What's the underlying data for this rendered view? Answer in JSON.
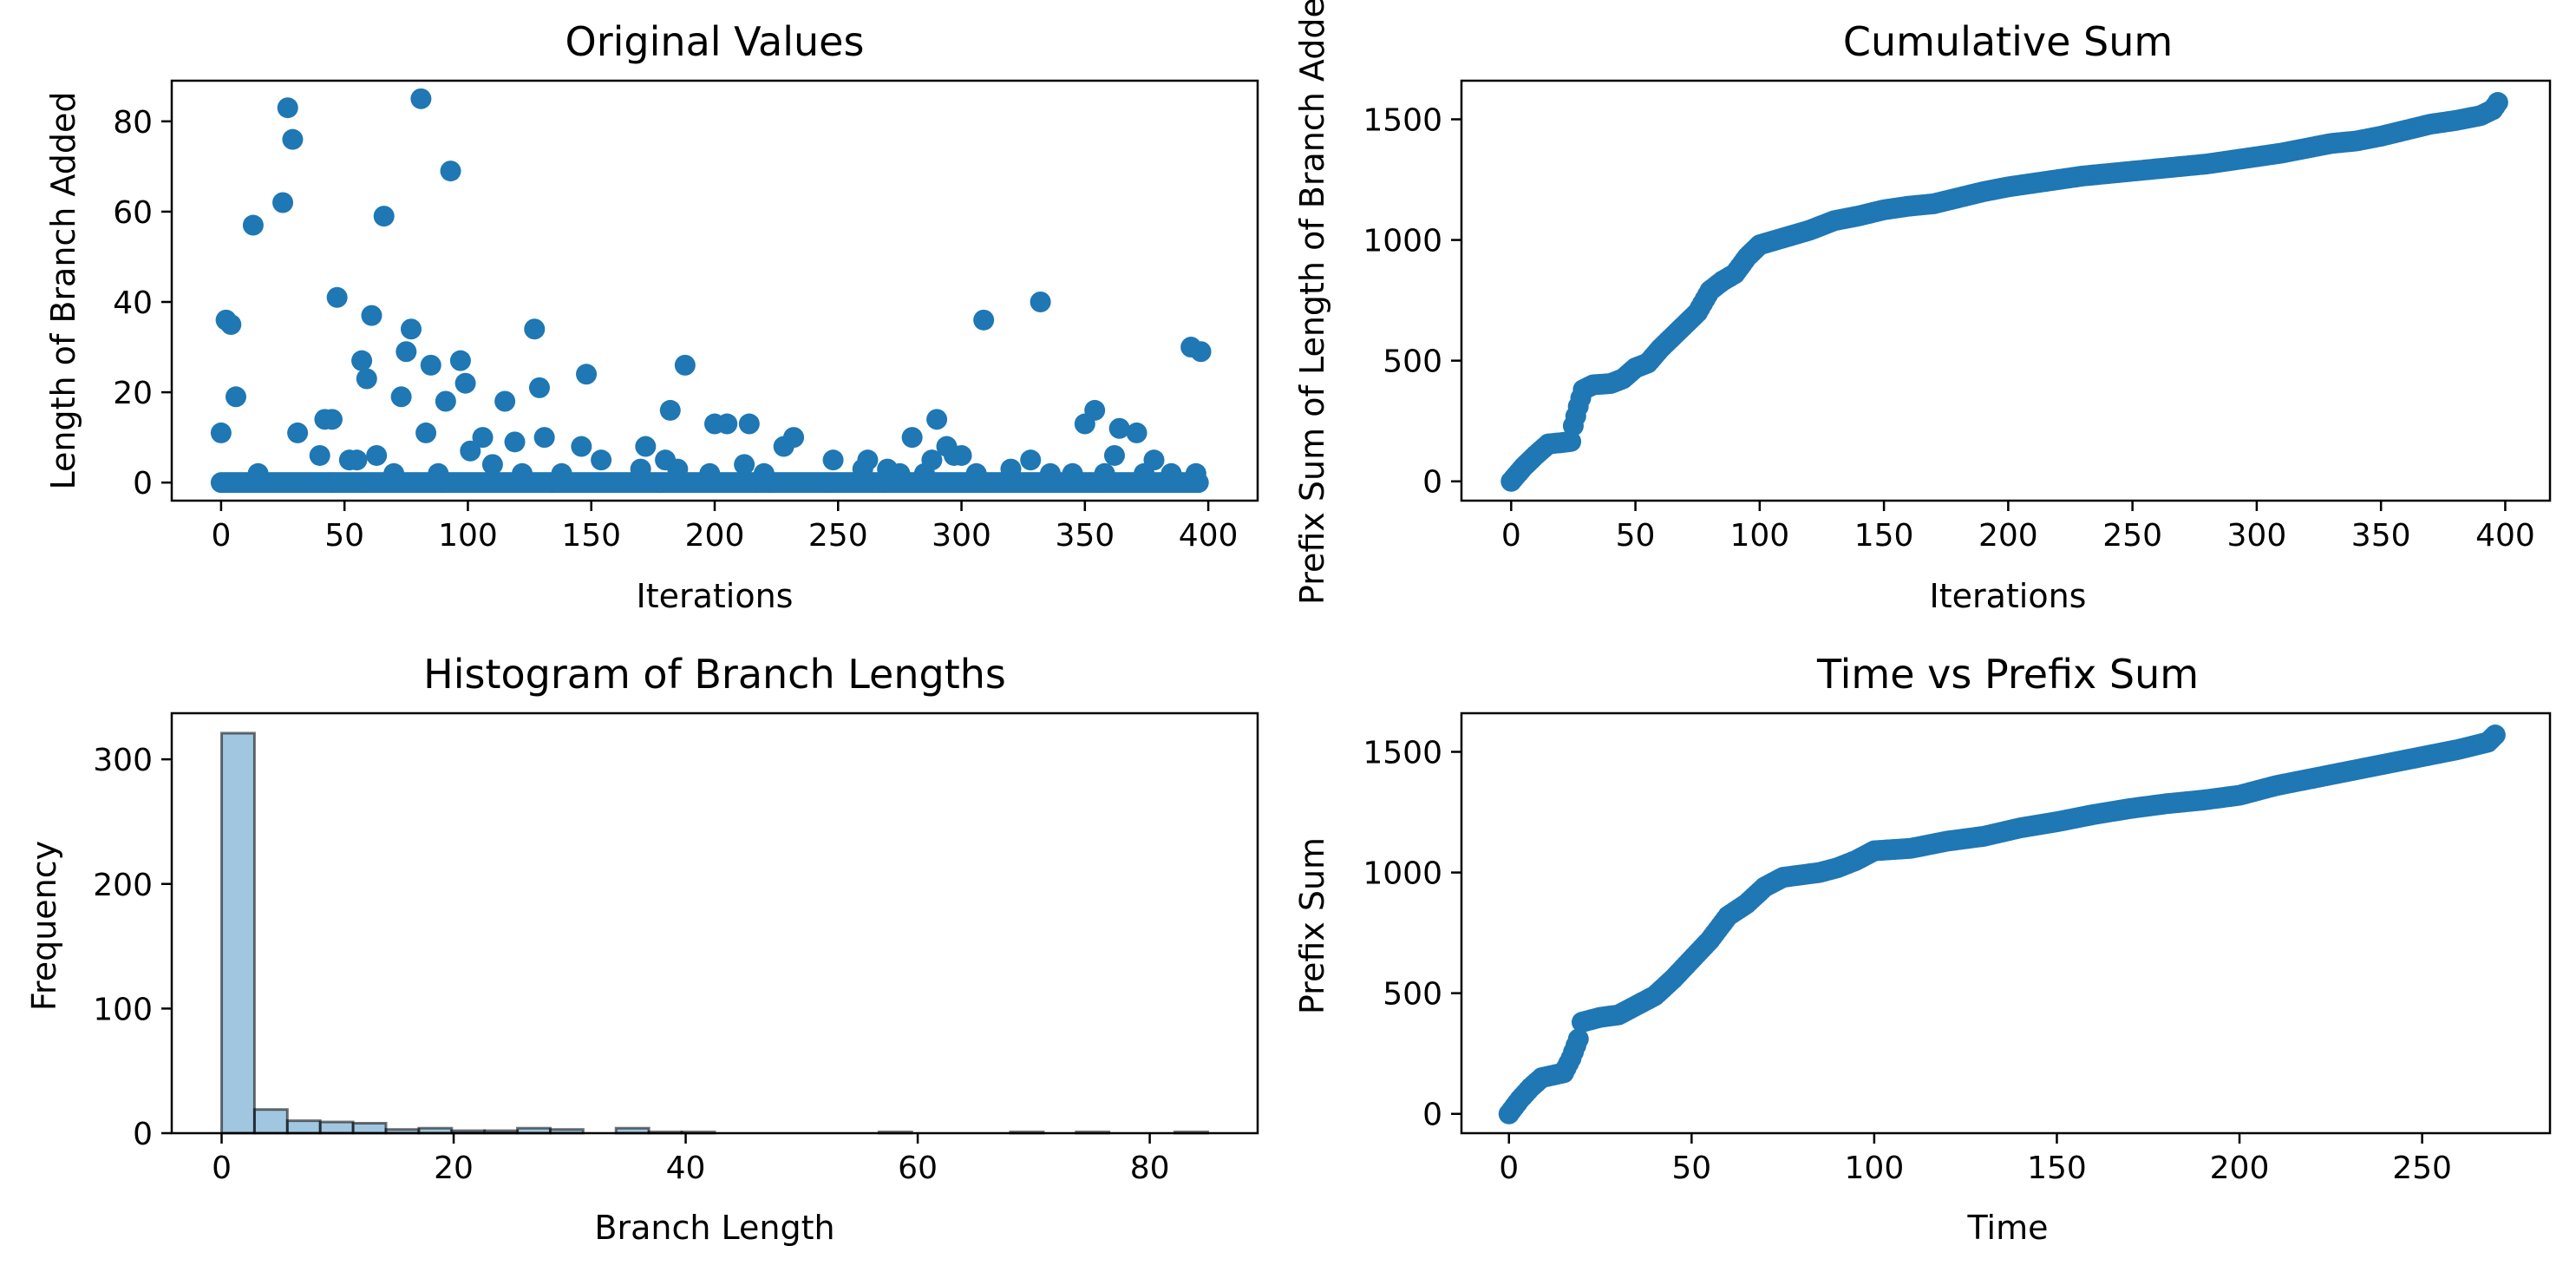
{
  "panels": [
    {
      "chart_data": {
        "type": "scatter",
        "title": "Original Values",
        "xlabel": "Iterations",
        "ylabel": "Length of Branch Added",
        "xlim": [
          -20,
          420
        ],
        "ylim": [
          -4,
          89
        ],
        "xticks": [
          0,
          50,
          100,
          150,
          200,
          250,
          300,
          350,
          400
        ],
        "yticks": [
          0,
          20,
          40,
          60,
          80
        ],
        "grid": false,
        "color": "#1f77b4",
        "baseline_zero_range": [
          0,
          396
        ],
        "points": [
          [
            0,
            11
          ],
          [
            2,
            36
          ],
          [
            4,
            35
          ],
          [
            6,
            19
          ],
          [
            13,
            57
          ],
          [
            15,
            2
          ],
          [
            25,
            62
          ],
          [
            27,
            83
          ],
          [
            29,
            76
          ],
          [
            31,
            11
          ],
          [
            40,
            6
          ],
          [
            42,
            14
          ],
          [
            45,
            14
          ],
          [
            47,
            41
          ],
          [
            52,
            5
          ],
          [
            55,
            5
          ],
          [
            57,
            27
          ],
          [
            59,
            23
          ],
          [
            61,
            37
          ],
          [
            63,
            6
          ],
          [
            66,
            59
          ],
          [
            70,
            2
          ],
          [
            73,
            19
          ],
          [
            75,
            29
          ],
          [
            77,
            34
          ],
          [
            81,
            85
          ],
          [
            83,
            11
          ],
          [
            85,
            26
          ],
          [
            88,
            2
          ],
          [
            91,
            18
          ],
          [
            93,
            69
          ],
          [
            97,
            27
          ],
          [
            99,
            22
          ],
          [
            101,
            7
          ],
          [
            106,
            10
          ],
          [
            110,
            4
          ],
          [
            115,
            18
          ],
          [
            119,
            9
          ],
          [
            122,
            2
          ],
          [
            127,
            34
          ],
          [
            129,
            21
          ],
          [
            131,
            10
          ],
          [
            138,
            2
          ],
          [
            146,
            8
          ],
          [
            148,
            24
          ],
          [
            154,
            5
          ],
          [
            170,
            3
          ],
          [
            172,
            8
          ],
          [
            180,
            5
          ],
          [
            182,
            16
          ],
          [
            185,
            3
          ],
          [
            188,
            26
          ],
          [
            198,
            2
          ],
          [
            200,
            13
          ],
          [
            205,
            13
          ],
          [
            212,
            4
          ],
          [
            214,
            13
          ],
          [
            220,
            2
          ],
          [
            228,
            8
          ],
          [
            232,
            10
          ],
          [
            248,
            5
          ],
          [
            260,
            3
          ],
          [
            262,
            5
          ],
          [
            270,
            3
          ],
          [
            275,
            2
          ],
          [
            280,
            10
          ],
          [
            285,
            2
          ],
          [
            288,
            5
          ],
          [
            290,
            14
          ],
          [
            294,
            8
          ],
          [
            297,
            6
          ],
          [
            300,
            6
          ],
          [
            306,
            2
          ],
          [
            309,
            36
          ],
          [
            320,
            3
          ],
          [
            328,
            5
          ],
          [
            332,
            40
          ],
          [
            336,
            2
          ],
          [
            345,
            2
          ],
          [
            350,
            13
          ],
          [
            354,
            16
          ],
          [
            358,
            2
          ],
          [
            362,
            6
          ],
          [
            364,
            12
          ],
          [
            371,
            11
          ],
          [
            374,
            2
          ],
          [
            378,
            5
          ],
          [
            385,
            2
          ],
          [
            393,
            30
          ],
          [
            395,
            2
          ],
          [
            397,
            29
          ]
        ]
      }
    },
    {
      "chart_data": {
        "type": "scatter",
        "title": "Cumulative Sum",
        "xlabel": "Iterations",
        "ylabel": "Prefix Sum of Length of Branch Added",
        "xlim": [
          -20,
          418
        ],
        "ylim": [
          -80,
          1660
        ],
        "xticks": [
          0,
          50,
          100,
          150,
          200,
          250,
          300,
          350,
          400
        ],
        "yticks": [
          0,
          500,
          1000,
          1500
        ],
        "grid": false,
        "color": "#1f77b4",
        "x": [
          0,
          5,
          10,
          15,
          20,
          24,
          25,
          27,
          29,
          33,
          40,
          45,
          50,
          55,
          60,
          65,
          70,
          75,
          80,
          85,
          90,
          95,
          100,
          110,
          120,
          130,
          140,
          150,
          160,
          170,
          180,
          190,
          200,
          210,
          220,
          230,
          240,
          250,
          260,
          270,
          280,
          290,
          300,
          310,
          320,
          330,
          340,
          350,
          360,
          370,
          380,
          390,
          395,
          397
        ],
        "y": [
          0,
          60,
          110,
          155,
          160,
          165,
          230,
          310,
          380,
          400,
          405,
          425,
          470,
          490,
          550,
          600,
          650,
          700,
          790,
          830,
          860,
          930,
          980,
          1010,
          1040,
          1080,
          1100,
          1125,
          1140,
          1150,
          1175,
          1200,
          1220,
          1235,
          1250,
          1265,
          1275,
          1285,
          1295,
          1305,
          1315,
          1330,
          1345,
          1360,
          1380,
          1400,
          1410,
          1430,
          1455,
          1480,
          1495,
          1515,
          1540,
          1570
        ]
      }
    },
    {
      "chart_data": {
        "type": "bar",
        "title": "Histogram of Branch Lengths",
        "xlabel": "Branch Length",
        "ylabel": "Frequency",
        "xlim": [
          -4.3,
          89.3
        ],
        "ylim": [
          0,
          337
        ],
        "xticks": [
          0,
          20,
          40,
          60,
          80
        ],
        "yticks": [
          0,
          100,
          200,
          300
        ],
        "grid": false,
        "color": "#1f77b4",
        "bin_width": 2.833,
        "bin_start": 0,
        "values": [
          321,
          19,
          10,
          9,
          8,
          3,
          4,
          2,
          2,
          4,
          3,
          0,
          4,
          1,
          1,
          0,
          0,
          0,
          0,
          0,
          1,
          0,
          0,
          0,
          1,
          0,
          1,
          0,
          0,
          1
        ]
      }
    },
    {
      "chart_data": {
        "type": "scatter",
        "title": "Time vs Prefix Sum",
        "xlabel": "Time",
        "ylabel": "Prefix Sum",
        "xlim": [
          -13,
          285
        ],
        "ylim": [
          -80,
          1660
        ],
        "xticks": [
          0,
          50,
          100,
          150,
          200,
          250
        ],
        "yticks": [
          0,
          500,
          1000,
          1500
        ],
        "grid": false,
        "color": "#1f77b4",
        "x": [
          0,
          3,
          6,
          9,
          12,
          15,
          17,
          19,
          20,
          25,
          30,
          35,
          40,
          45,
          50,
          55,
          60,
          65,
          70,
          75,
          80,
          85,
          90,
          95,
          100,
          110,
          120,
          130,
          140,
          150,
          160,
          170,
          180,
          190,
          200,
          210,
          220,
          230,
          240,
          250,
          260,
          268,
          270
        ],
        "y": [
          0,
          60,
          110,
          150,
          160,
          170,
          230,
          310,
          380,
          400,
          410,
          450,
          490,
          560,
          640,
          720,
          820,
          870,
          940,
          980,
          990,
          1000,
          1020,
          1050,
          1090,
          1100,
          1130,
          1150,
          1185,
          1210,
          1240,
          1265,
          1285,
          1300,
          1320,
          1360,
          1390,
          1420,
          1450,
          1480,
          1510,
          1540,
          1570
        ]
      }
    }
  ]
}
